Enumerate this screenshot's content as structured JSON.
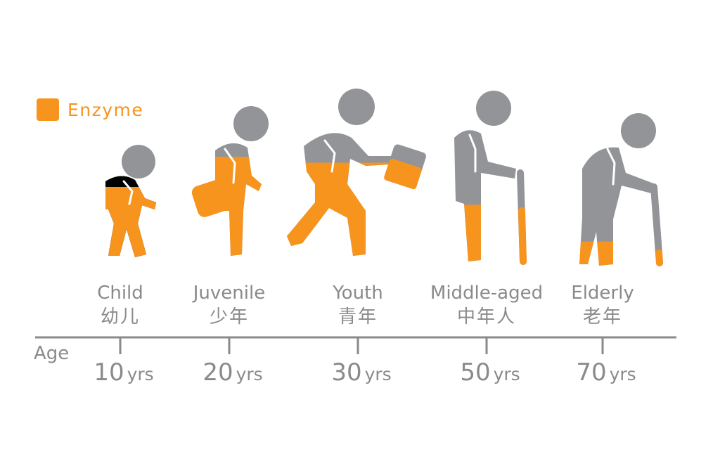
{
  "legend": {
    "label": "Enzyme",
    "color": "#f7941d"
  },
  "colors": {
    "enzyme": "#f7941d",
    "body": "#939497",
    "text": "#8a8a8a",
    "axis": "#8a8a8a"
  },
  "axis": {
    "title": "Age",
    "unit": "yrs"
  },
  "stages": [
    {
      "en": "Child",
      "zh": "幼儿",
      "age": "10",
      "enzyme_level": 0.82
    },
    {
      "en": "Juvenile",
      "zh": "少年",
      "age": "20",
      "enzyme_level": 0.86
    },
    {
      "en": "Youth",
      "zh": "青年",
      "age": "30",
      "enzyme_level": 0.72
    },
    {
      "en": "Middle-aged",
      "zh": "中年人",
      "age": "50",
      "enzyme_level": 0.42
    },
    {
      "en": "Elderly",
      "zh": "老年",
      "age": "70",
      "enzyme_level": 0.2
    }
  ]
}
